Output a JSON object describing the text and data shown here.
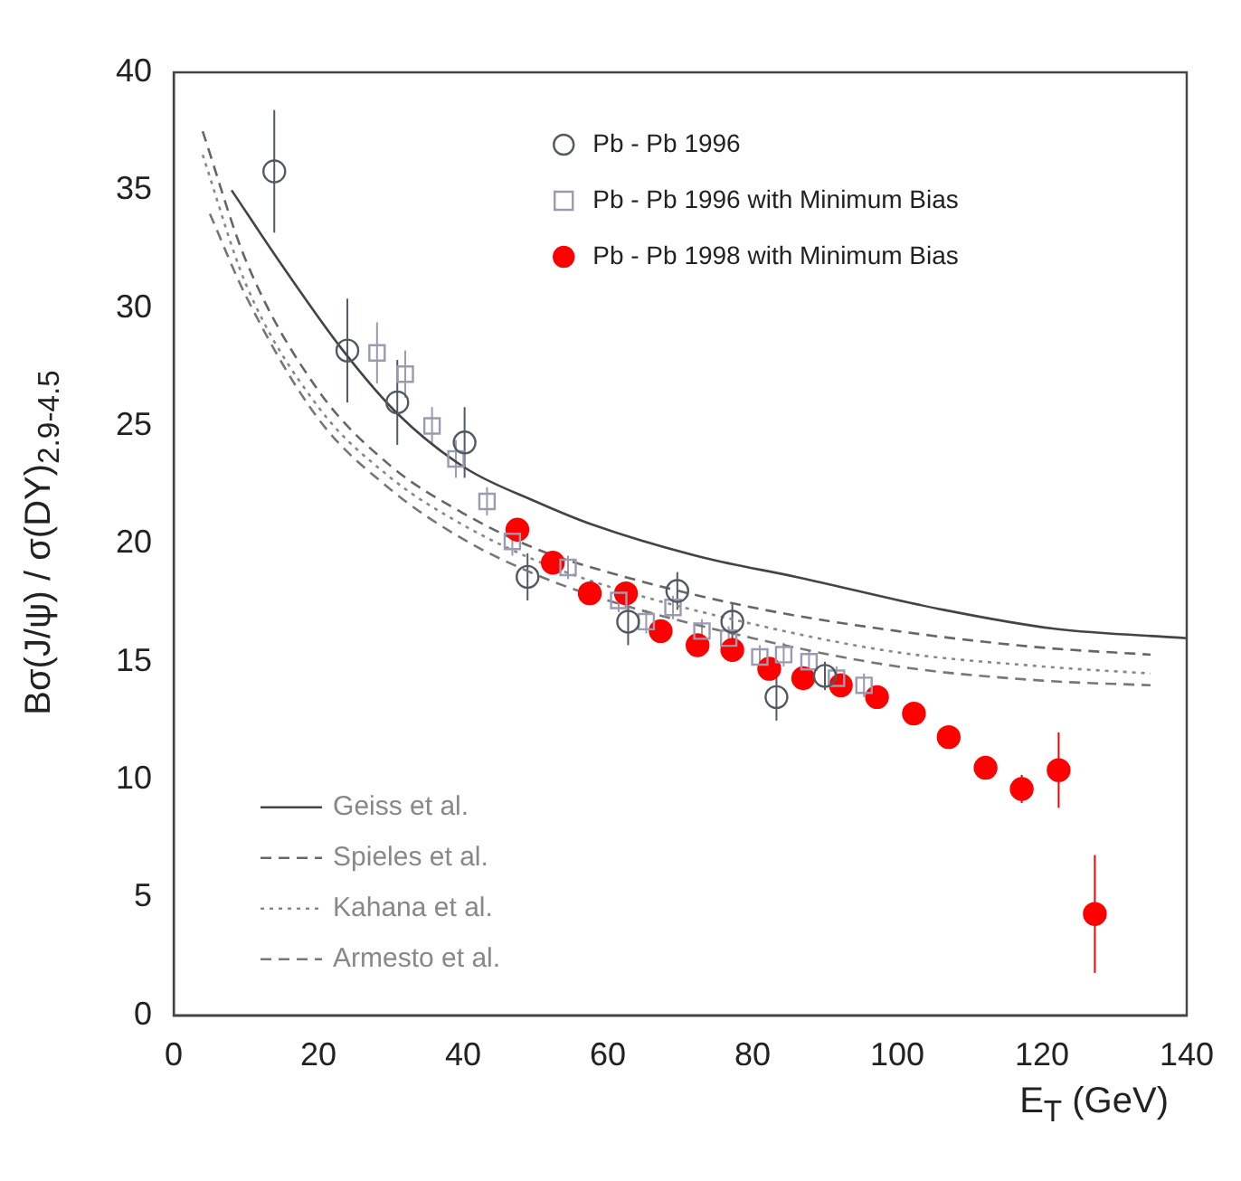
{
  "chart_data": {
    "type": "scatter",
    "xlabel": "E$_{T}$ (GeV)",
    "ylabel": "Bσ(J/ψ) / σ(DY)$_{2.9-4.5}$",
    "xlim": [
      0,
      140
    ],
    "xticks": [
      0,
      20,
      40,
      60,
      80,
      100,
      120,
      140
    ],
    "ylim": [
      0,
      40
    ],
    "yticks": [
      0,
      5,
      10,
      15,
      20,
      25,
      30,
      35,
      40
    ],
    "grid": false,
    "legend": "bottom left",
    "series": [
      {
        "name": "Pb - Pb 1996",
        "type": "scatter",
        "marker": "circle",
        "color": "#505a60",
        "x": [
          13.9,
          24,
          30.9,
          40.2,
          48.9,
          62.8,
          69.6,
          77.2,
          83.3,
          90
        ],
        "values": [
          35.8,
          28.2,
          26,
          24.3,
          18.6,
          16.7,
          18,
          16.7,
          13.5,
          14.4
        ],
        "errors": [
          2.6,
          2.2,
          1.8,
          1.5,
          1,
          1,
          0.8,
          0.8,
          1,
          0.6
        ]
      },
      {
        "name": "Pb - Pb 1996 with Minimum Bias",
        "type": "scatter",
        "marker": "square",
        "color": "#9a9ab0",
        "x": [
          28.1,
          32,
          35.7,
          39,
          43.3,
          46.8,
          54.5,
          61.5,
          65.3,
          69,
          73,
          76.7,
          81,
          84.3,
          87.8,
          91.6,
          95.4
        ],
        "values": [
          28.1,
          27.2,
          25,
          23.6,
          21.8,
          20.1,
          19,
          17.6,
          16.7,
          17.3,
          16.3,
          16,
          15.2,
          15.3,
          15,
          14.3,
          14
        ],
        "errors": [
          1.3,
          1,
          0.8,
          0.8,
          0.6,
          0.6,
          0.5,
          0.5,
          0.5,
          0.5,
          0.5,
          0.5,
          0.5,
          0.5,
          0.5,
          0.5,
          0.5
        ]
      },
      {
        "name": "Pb - Pb 1998 with Minimum Bias",
        "type": "scatter",
        "marker": "circle",
        "color": "#ff0000",
        "x": [
          47.5,
          52.4,
          57.5,
          62.5,
          67.3,
          72.4,
          77.2,
          82.3,
          87,
          92.2,
          97.2,
          102.3,
          107.1,
          112.2,
          117.2,
          122.3,
          127.3
        ],
        "values": [
          20.6,
          19.2,
          17.9,
          17.9,
          16.3,
          15.7,
          15.5,
          14.7,
          14.3,
          14,
          13.5,
          12.8,
          11.8,
          10.5,
          9.6,
          10.4,
          4.3
        ],
        "errors": [
          null,
          null,
          null,
          null,
          null,
          null,
          null,
          null,
          null,
          null,
          null,
          null,
          null,
          null,
          0.6,
          1.6,
          2.5
        ]
      },
      {
        "name": "Geiss et al.",
        "type": "line",
        "line_style": "solid",
        "marker": "none",
        "color": "#444444",
        "x": [
          8,
          15,
          23.4,
          31,
          40.4,
          50,
          58,
          73.4,
          86,
          106.4,
          121.7,
          140
        ],
        "values": [
          35,
          31.8,
          28.2,
          25.5,
          23.2,
          21.8,
          20.8,
          19.4,
          18.6,
          17.2,
          16.4,
          16
        ]
      },
      {
        "name": "Spieles et al.",
        "type": "line",
        "line_style": "dashed",
        "marker": "none",
        "color": "#666666",
        "x": [
          4,
          10,
          20,
          30,
          40,
          50,
          60,
          80,
          100,
          120,
          135
        ],
        "values": [
          37.5,
          32,
          26.5,
          23.3,
          21.3,
          19.8,
          18.8,
          17.3,
          16.3,
          15.6,
          15.3
        ]
      },
      {
        "name": "Kahana et al.",
        "type": "line",
        "line_style": "dotted",
        "marker": "none",
        "color": "#888888",
        "x": [
          4,
          10,
          20,
          30,
          40,
          50,
          60,
          80,
          100,
          120,
          135
        ],
        "values": [
          36.5,
          31,
          25.8,
          22.8,
          20.8,
          19.3,
          18.2,
          16.6,
          15.4,
          14.8,
          14.5
        ]
      },
      {
        "name": "Armesto et al.",
        "type": "line",
        "line_style": "dashed",
        "marker": "none",
        "color": "#777777",
        "x": [
          5,
          10,
          20,
          30,
          40,
          50,
          60,
          80,
          100,
          120,
          135
        ],
        "values": [
          34,
          30.5,
          25.3,
          22.3,
          20.2,
          18.7,
          17.6,
          16,
          14.8,
          14.2,
          14
        ]
      }
    ]
  }
}
